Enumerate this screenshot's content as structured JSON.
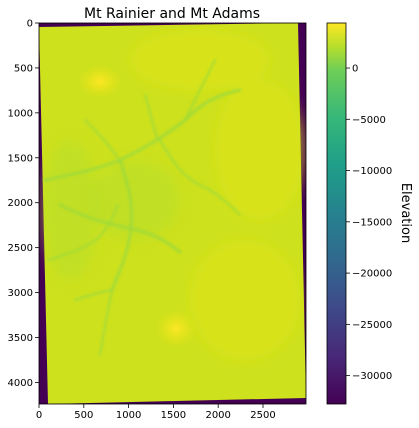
{
  "chart_data": [
    {
      "type": "heatmap",
      "title": "Mt Rainier and Mt Adams",
      "xlabel": "",
      "ylabel": "",
      "xlim": [
        0,
        2980
      ],
      "ylim": [
        4240,
        0
      ],
      "x_ticks": [
        0,
        500,
        1000,
        1500,
        2000,
        2500
      ],
      "y_ticks": [
        0,
        500,
        1000,
        1500,
        2000,
        2500,
        3000,
        3500,
        4000
      ],
      "grid": false,
      "colormap": "viridis",
      "nodata_value": -32768,
      "peaks": [
        {
          "x": 680,
          "y": 650
        },
        {
          "x": 1530,
          "y": 3400
        }
      ],
      "colorbar": {
        "label": "Elevation",
        "range": [
          -32768,
          4392
        ],
        "ticks": [
          0,
          -5000,
          -10000,
          -15000,
          -20000,
          -25000,
          -30000
        ],
        "tick_labels": [
          "0",
          "−5000",
          "−10000",
          "−15000",
          "−20000",
          "−25000",
          "−30000"
        ]
      }
    }
  ],
  "colors": {
    "nodata": "#440154",
    "low_land": "#b5de2b",
    "mid_land": "#cde11d",
    "high_land": "#e1e318",
    "peak": "#fde725",
    "valley": "#a0da39"
  }
}
